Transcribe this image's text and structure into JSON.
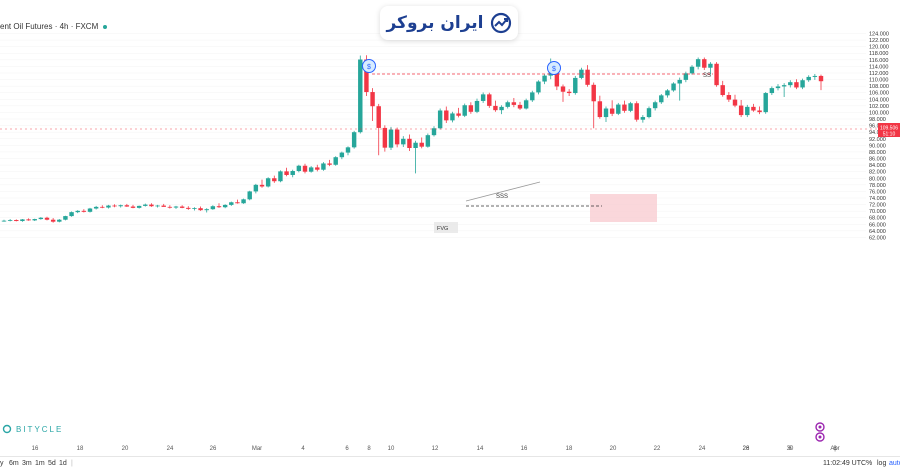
{
  "header": {
    "symbol_title": "ent Oil Futures · 4h · FXCM"
  },
  "logo": {
    "text": "ایران بروکر"
  },
  "watermark": {
    "text": "BITYCLE"
  },
  "price_tag": {
    "price": "109.506",
    "countdown": "51:10",
    "color": "#f23645"
  },
  "bottom_bar": {
    "ranges": [
      "y",
      "6m",
      "3m",
      "1m",
      "5d",
      "1d"
    ],
    "clock": "11:02:49 UTC",
    "percent": "%",
    "log": "log",
    "auto": "auto"
  },
  "annotations": {
    "top_left_symbol": "$",
    "top_right_symbol": "$",
    "ss_label": "SS",
    "sss_label": "SSS",
    "fvg_label": "FVG"
  },
  "colors": {
    "up": "#26a69a",
    "down": "#f23645",
    "accent": "#2962ff"
  },
  "chart_data": {
    "type": "candlestick",
    "title": "",
    "x_ticks": [
      "16",
      "18",
      "20",
      "24",
      "26",
      "Mar",
      "4",
      "6",
      "8",
      "10",
      "12",
      "14",
      "16",
      "18",
      "20",
      "22",
      "24",
      "26",
      "28",
      "30",
      "Apr",
      "6",
      "8"
    ],
    "y_ticks": [
      "124.000",
      "122.000",
      "120.000",
      "118.000",
      "116.000",
      "114.000",
      "112.000",
      "110.000",
      "108.000",
      "106.000",
      "104.000",
      "102.000",
      "100.000",
      "98.000",
      "96.000",
      "94.000",
      "92.000",
      "90.000",
      "88.000",
      "86.000",
      "84.000",
      "82.000",
      "80.000",
      "78.000",
      "76.000",
      "74.000",
      "72.000",
      "70.000",
      "68.000",
      "66.000",
      "64.000",
      "62.000"
    ],
    "ylim": [
      61,
      125
    ],
    "candles": [
      [
        67.0,
        67.4,
        66.8,
        67.1
      ],
      [
        67.1,
        67.6,
        66.9,
        67.3
      ],
      [
        67.3,
        67.5,
        66.9,
        67.0
      ],
      [
        67.0,
        67.6,
        66.8,
        67.5
      ],
      [
        67.5,
        67.8,
        67.1,
        67.2
      ],
      [
        67.2,
        67.7,
        67.0,
        67.6
      ],
      [
        67.6,
        68.2,
        67.4,
        68.0
      ],
      [
        68.0,
        68.3,
        67.2,
        67.4
      ],
      [
        67.4,
        67.9,
        66.5,
        66.8
      ],
      [
        66.8,
        67.6,
        66.6,
        67.4
      ],
      [
        67.4,
        68.6,
        67.2,
        68.5
      ],
      [
        68.5,
        69.9,
        68.3,
        69.7
      ],
      [
        69.7,
        70.3,
        69.4,
        70.1
      ],
      [
        70.1,
        70.6,
        69.6,
        69.8
      ],
      [
        69.8,
        71.0,
        69.6,
        70.8
      ],
      [
        70.8,
        71.6,
        70.5,
        71.3
      ],
      [
        71.3,
        71.8,
        70.9,
        71.1
      ],
      [
        71.1,
        71.9,
        70.8,
        71.7
      ],
      [
        71.7,
        72.1,
        71.2,
        71.5
      ],
      [
        71.5,
        72.0,
        71.1,
        71.8
      ],
      [
        71.8,
        72.2,
        71.3,
        71.4
      ],
      [
        71.4,
        71.9,
        70.9,
        71.0
      ],
      [
        71.0,
        71.7,
        70.8,
        71.6
      ],
      [
        71.6,
        72.3,
        71.4,
        72.0
      ],
      [
        72.0,
        72.4,
        71.3,
        71.5
      ],
      [
        71.5,
        71.9,
        71.1,
        71.7
      ],
      [
        71.7,
        72.2,
        71.4,
        71.3
      ],
      [
        71.3,
        71.8,
        70.8,
        71.1
      ],
      [
        71.1,
        71.6,
        70.7,
        71.4
      ],
      [
        71.4,
        71.8,
        70.9,
        71.0
      ],
      [
        71.0,
        71.5,
        70.4,
        70.7
      ],
      [
        70.7,
        71.2,
        70.2,
        70.9
      ],
      [
        70.9,
        71.4,
        70.1,
        70.3
      ],
      [
        70.3,
        70.9,
        69.6,
        70.6
      ],
      [
        70.6,
        71.8,
        70.4,
        71.5
      ],
      [
        71.5,
        72.4,
        71.0,
        71.2
      ],
      [
        71.2,
        72.1,
        70.9,
        71.9
      ],
      [
        71.9,
        72.9,
        71.6,
        72.7
      ],
      [
        72.7,
        73.5,
        72.3,
        72.4
      ],
      [
        72.4,
        73.8,
        72.2,
        73.6
      ],
      [
        73.6,
        76.2,
        73.3,
        76.0
      ],
      [
        76.0,
        78.3,
        75.4,
        78.0
      ],
      [
        78.0,
        79.6,
        77.1,
        77.5
      ],
      [
        77.5,
        80.3,
        77.2,
        80.0
      ],
      [
        80.0,
        80.8,
        78.6,
        79.1
      ],
      [
        79.1,
        82.4,
        78.8,
        82.1
      ],
      [
        82.1,
        83.2,
        80.6,
        81.0
      ],
      [
        81.0,
        82.6,
        80.3,
        82.2
      ],
      [
        82.2,
        84.1,
        81.8,
        83.8
      ],
      [
        83.8,
        84.4,
        81.5,
        82.0
      ],
      [
        82.0,
        83.7,
        81.7,
        83.3
      ],
      [
        83.3,
        84.1,
        82.1,
        82.6
      ],
      [
        82.6,
        84.9,
        82.3,
        84.5
      ],
      [
        84.5,
        85.6,
        83.7,
        84.1
      ],
      [
        84.1,
        86.7,
        83.8,
        86.4
      ],
      [
        86.4,
        88.1,
        85.8,
        87.8
      ],
      [
        87.8,
        89.7,
        87.0,
        89.4
      ],
      [
        89.4,
        94.4,
        89.0,
        94.0
      ],
      [
        94.0,
        117.3,
        93.6,
        116.1
      ],
      [
        116.1,
        117.4,
        105.0,
        106.2
      ],
      [
        106.2,
        107.4,
        97.4,
        101.9
      ],
      [
        101.9,
        102.6,
        87.0,
        95.3
      ],
      [
        95.3,
        96.1,
        88.1,
        89.3
      ],
      [
        89.3,
        95.6,
        88.6,
        94.8
      ],
      [
        94.8,
        95.4,
        89.4,
        90.3
      ],
      [
        90.3,
        92.8,
        89.5,
        92.0
      ],
      [
        92.0,
        93.3,
        88.3,
        89.2
      ],
      [
        89.2,
        91.4,
        81.5,
        90.8
      ],
      [
        90.8,
        92.4,
        89.1,
        89.6
      ],
      [
        89.6,
        93.6,
        89.3,
        93.1
      ],
      [
        93.1,
        95.8,
        92.7,
        95.2
      ],
      [
        95.2,
        101.2,
        94.8,
        100.6
      ],
      [
        100.6,
        101.8,
        96.8,
        97.6
      ],
      [
        97.6,
        100.2,
        97.0,
        99.7
      ],
      [
        99.7,
        101.4,
        98.5,
        99.0
      ],
      [
        99.0,
        102.7,
        98.6,
        102.2
      ],
      [
        102.2,
        103.1,
        99.6,
        100.2
      ],
      [
        100.2,
        104.2,
        99.8,
        103.5
      ],
      [
        103.5,
        106.1,
        102.9,
        105.5
      ],
      [
        105.5,
        106.0,
        101.4,
        102.0
      ],
      [
        102.0,
        103.6,
        100.2,
        100.7
      ],
      [
        100.7,
        102.2,
        99.5,
        101.7
      ],
      [
        101.7,
        103.6,
        101.2,
        103.1
      ],
      [
        103.1,
        104.4,
        101.6,
        102.3
      ],
      [
        102.3,
        103.2,
        100.8,
        101.2
      ],
      [
        101.2,
        104.2,
        100.9,
        103.7
      ],
      [
        103.7,
        106.6,
        103.2,
        106.1
      ],
      [
        106.1,
        109.8,
        105.5,
        109.4
      ],
      [
        109.4,
        111.6,
        108.6,
        111.2
      ],
      [
        111.2,
        116.4,
        110.1,
        112.1
      ],
      [
        112.1,
        113.2,
        106.8,
        107.9
      ],
      [
        107.9,
        108.5,
        103.2,
        106.3
      ],
      [
        106.3,
        107.1,
        105.0,
        105.9
      ],
      [
        105.9,
        111.1,
        105.4,
        110.5
      ],
      [
        110.5,
        113.6,
        110.1,
        113.0
      ],
      [
        113.0,
        114.4,
        107.8,
        108.4
      ],
      [
        108.4,
        109.1,
        95.2,
        103.4
      ],
      [
        103.4,
        105.1,
        98.1,
        98.6
      ],
      [
        98.6,
        101.8,
        97.1,
        101.2
      ],
      [
        101.2,
        103.7,
        98.9,
        99.6
      ],
      [
        99.6,
        102.9,
        99.2,
        102.4
      ],
      [
        102.4,
        103.6,
        99.9,
        100.5
      ],
      [
        100.5,
        103.2,
        100.1,
        102.8
      ],
      [
        102.8,
        103.4,
        97.2,
        97.8
      ],
      [
        97.8,
        99.2,
        96.9,
        98.6
      ],
      [
        98.6,
        101.8,
        98.2,
        101.3
      ],
      [
        101.3,
        103.6,
        100.6,
        103.1
      ],
      [
        103.1,
        105.6,
        102.6,
        105.2
      ],
      [
        105.2,
        107.1,
        104.5,
        106.7
      ],
      [
        106.7,
        109.2,
        106.3,
        108.8
      ],
      [
        108.8,
        110.6,
        103.6,
        109.9
      ],
      [
        109.9,
        112.4,
        109.2,
        111.9
      ],
      [
        111.9,
        114.4,
        111.5,
        113.9
      ],
      [
        113.9,
        116.7,
        113.1,
        116.2
      ],
      [
        116.2,
        116.7,
        112.9,
        113.6
      ],
      [
        113.6,
        115.3,
        111.5,
        114.8
      ],
      [
        114.8,
        115.3,
        107.8,
        108.3
      ],
      [
        108.3,
        109.6,
        104.8,
        105.3
      ],
      [
        105.3,
        106.2,
        103.2,
        103.9
      ],
      [
        103.9,
        105.4,
        101.6,
        102.1
      ],
      [
        102.1,
        103.8,
        98.6,
        99.2
      ],
      [
        99.2,
        102.3,
        98.6,
        101.7
      ],
      [
        101.7,
        102.6,
        100.2,
        100.6
      ],
      [
        100.6,
        101.8,
        99.5,
        100.1
      ],
      [
        100.1,
        106.2,
        99.6,
        105.9
      ],
      [
        105.9,
        107.9,
        105.3,
        107.4
      ],
      [
        107.4,
        108.6,
        106.7,
        107.9
      ],
      [
        107.9,
        108.9,
        104.7,
        108.3
      ],
      [
        108.3,
        109.8,
        107.6,
        109.2
      ],
      [
        109.2,
        110.1,
        107.1,
        107.6
      ],
      [
        107.6,
        110.3,
        107.1,
        109.8
      ],
      [
        109.8,
        111.3,
        109.3,
        110.8
      ],
      [
        110.8,
        111.7,
        109.9,
        111.1
      ],
      [
        111.1,
        111.5,
        106.8,
        109.5
      ]
    ]
  }
}
